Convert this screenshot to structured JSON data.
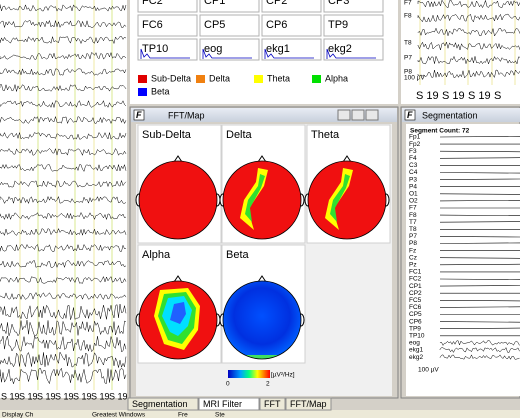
{
  "eeg_left": {
    "markers": [
      "S 19",
      "S 19",
      "S 19",
      "S 19",
      "S 19",
      "S 19",
      "S 19"
    ]
  },
  "channel_grid": {
    "cells": [
      "FC2",
      "CP1",
      "CP2",
      "CP3",
      "FC6",
      "CP5",
      "CP6",
      "TP9",
      "TP10",
      "eog",
      "ekg1",
      "ekg2"
    ]
  },
  "legend": [
    {
      "name": "Sub-Delta",
      "color": "#e00000"
    },
    {
      "name": "Delta",
      "color": "#f08010"
    },
    {
      "name": "Theta",
      "color": "#ffff00"
    },
    {
      "name": "Alpha",
      "color": "#00e000"
    },
    {
      "name": "Beta",
      "color": "#0000ff"
    }
  ],
  "eeg_right": {
    "channels": [
      "F7",
      "F8",
      "T8",
      "P7",
      "P8"
    ],
    "scale": "100 µV",
    "markers": [
      "S 19",
      "S 19",
      "S 19",
      "S"
    ]
  },
  "fft_map": {
    "title": "FFT/Map",
    "maps": [
      "Sub-Delta",
      "Delta",
      "Theta",
      "Alpha",
      "Beta"
    ],
    "colorbar": {
      "min": "0",
      "max": "2",
      "unit": "[µV²/Hz]"
    }
  },
  "segmentation": {
    "title": "Segmentation",
    "count": "Segment Count: 72",
    "channels": [
      "Fp1",
      "Fp2",
      "F3",
      "F4",
      "C3",
      "C4",
      "P3",
      "P4",
      "O1",
      "O2",
      "F7",
      "F8",
      "T7",
      "T8",
      "P7",
      "P8",
      "Fz",
      "Cz",
      "Pz",
      "FC1",
      "FC2",
      "CP1",
      "CP2",
      "FC5",
      "FC6",
      "CP5",
      "CP6",
      "TP9",
      "TP10",
      "eog",
      "ekg1",
      "ekg2"
    ],
    "scale": "100 µV"
  },
  "tabs": [
    "Segmentation",
    "MRI Filter",
    "FFT",
    "FFT/Map"
  ],
  "status": [
    "Display Ch",
    "Greatest Windows",
    "Fre",
    "Ste"
  ]
}
